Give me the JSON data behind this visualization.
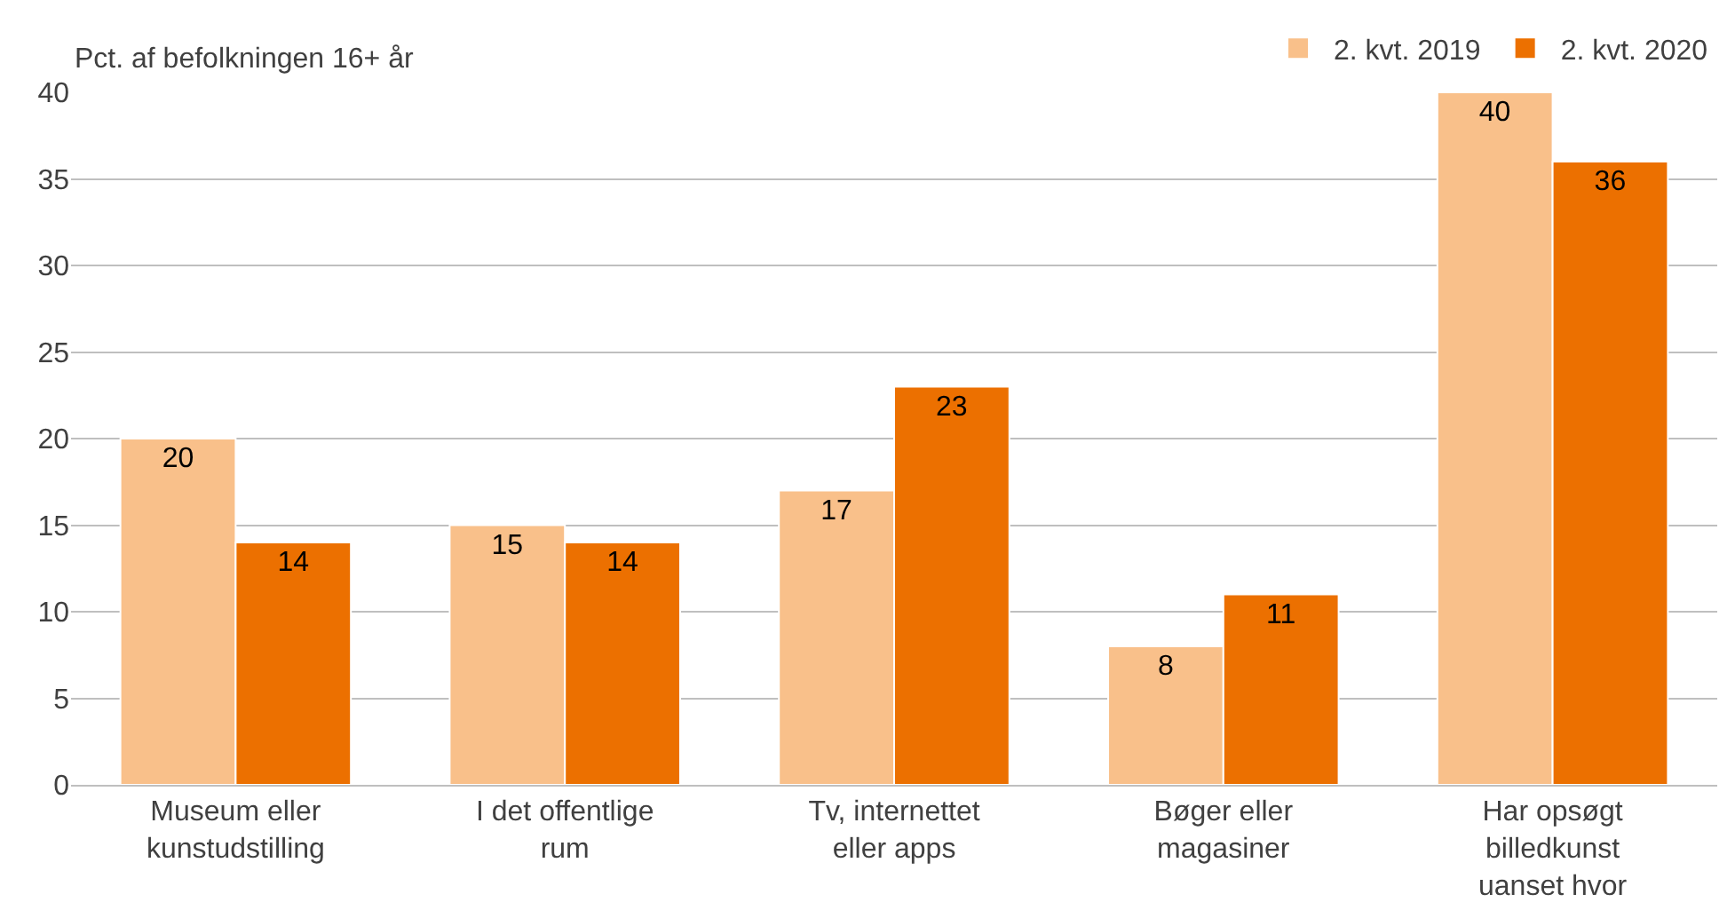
{
  "chart_data": {
    "type": "bar",
    "ylabel": "Pct. af befolkningen 16+ år",
    "categories": [
      "Museum eller kunstudstilling",
      "I det offentlige rum",
      "Tv, internettet eller apps",
      "Bøger eller magasiner",
      "Har opsøgt billedkunst uanset hvor"
    ],
    "series": [
      {
        "name": "2. kvt. 2019",
        "color": "#f9c08a",
        "values": [
          20,
          15,
          17,
          8,
          40
        ]
      },
      {
        "name": "2. kvt. 2020",
        "color": "#ec7000",
        "values": [
          14,
          14,
          23,
          11,
          36
        ]
      }
    ],
    "ylim": [
      0,
      40
    ],
    "yticks": [
      0,
      5,
      10,
      15,
      20,
      25,
      30,
      35,
      40
    ],
    "grid": "y",
    "legend": "top right",
    "data_labels": true
  }
}
